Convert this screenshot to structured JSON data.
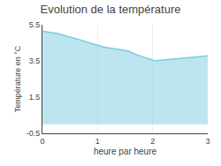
{
  "chart_data": {
    "type": "area",
    "title": "Evolution de la température",
    "x_label": "heure par heure",
    "y_label": "Température en °C",
    "x": [
      0,
      0.1,
      0.2,
      0.3,
      0.4,
      0.5,
      0.6,
      0.7,
      0.8,
      0.9,
      1.0,
      1.1,
      1.2,
      1.3,
      1.4,
      1.5,
      1.6,
      1.7,
      1.8,
      1.9,
      2.0,
      2.05,
      2.1,
      2.2,
      2.3,
      2.4,
      2.5,
      2.6,
      2.7,
      2.8,
      2.9,
      3.0
    ],
    "values": [
      5.15,
      5.1,
      5.05,
      5.0,
      4.9,
      4.82,
      4.75,
      4.65,
      4.55,
      4.45,
      4.35,
      4.28,
      4.22,
      4.18,
      4.12,
      4.08,
      4.0,
      3.85,
      3.75,
      3.65,
      3.52,
      3.5,
      3.52,
      3.55,
      3.57,
      3.6,
      3.63,
      3.66,
      3.7,
      3.73,
      3.76,
      3.78
    ],
    "color": "#7ccce0",
    "xlim": [
      0,
      3
    ],
    "xticks": [
      0,
      1,
      2,
      3
    ],
    "ylim": [
      -0.5,
      5.5
    ],
    "yticks": [
      -0.5,
      1.5,
      3.5,
      5.5
    ],
    "grid": "x"
  }
}
